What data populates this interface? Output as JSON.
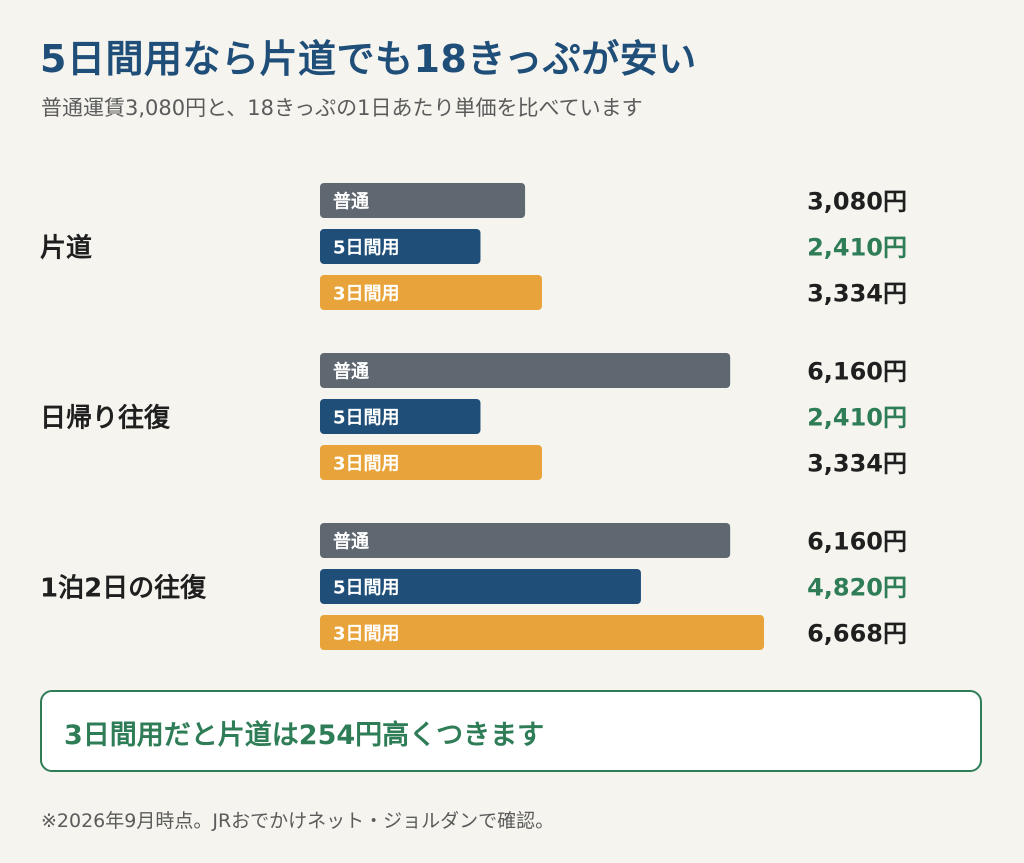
{
  "title": "5日間用なら片道でも18きっぷが安い",
  "subtitle": "普通運賃3,080円と、18きっぷの1日あたり単価を比べています",
  "chart_data": {
    "type": "bar",
    "orientation": "horizontal",
    "unit": "円",
    "value_suffix": "円",
    "categories": [
      "片道",
      "日帰り往復",
      "1泊2日の往復"
    ],
    "series": [
      {
        "name": "普通",
        "values": [
          3080,
          6160,
          6160
        ]
      },
      {
        "name": "5日間用",
        "values": [
          2410,
          2410,
          4820
        ]
      },
      {
        "name": "3日間用",
        "values": [
          3334,
          3334,
          6668
        ]
      }
    ],
    "xlim": [
      0,
      6668
    ],
    "grid": false,
    "legend": "none",
    "series_colors": [
      "#5f6771",
      "#1f4e79",
      "#e8a43a"
    ],
    "value_label_colors": [
      "#1f1f1f",
      "#2e7d57",
      "#1f1f1f"
    ]
  },
  "note": "3日間用だと片道は254円高くつきます",
  "footnote": "※2026年9月時点。JRおでかけネット・ジョルダンで確認。",
  "colors": {
    "background": "#f5f4ef",
    "title": "#1f4e79",
    "accent_green": "#2e7d57",
    "text": "#1f1f1f",
    "muted": "#5b5b5b"
  }
}
